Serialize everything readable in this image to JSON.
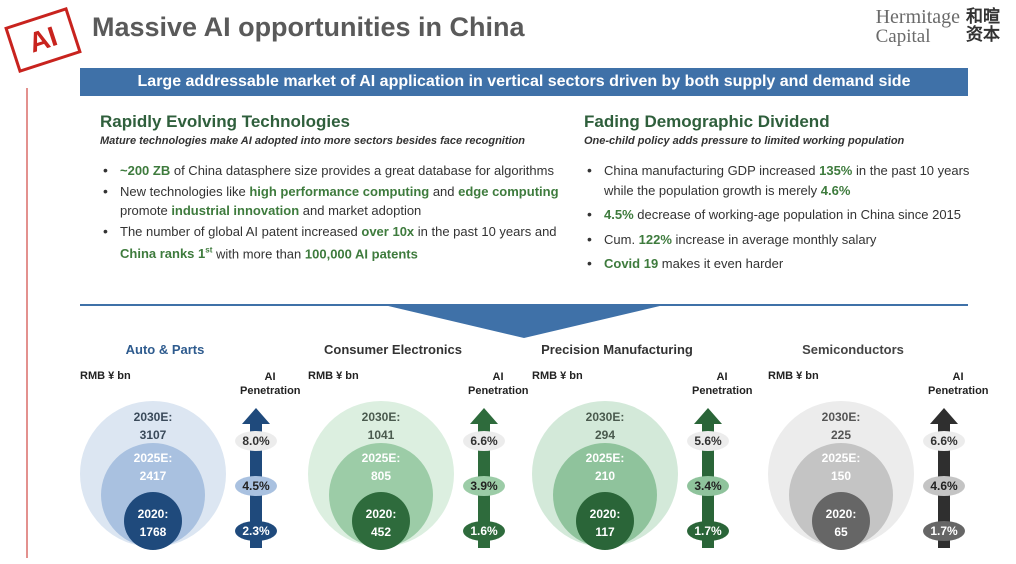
{
  "header": {
    "logo_text": "AI",
    "title": "Massive AI opportunities in China",
    "brand_en_1": "Hermitage",
    "brand_en_2": "Capital",
    "brand_cn_1": "和暄",
    "brand_cn_2": "资本"
  },
  "banner": "Large addressable market of AI application in vertical sectors driven by both supply and demand side",
  "left": {
    "heading": "Rapidly Evolving Technologies",
    "subheading": "Mature technologies make AI adopted into more sectors besides face recognition",
    "b1_hl": "~200 ZB",
    "b1_rest": " of China datasphere size provides a great database for algorithms",
    "b2_a": "New technologies like ",
    "b2_hl1": "high performance computing",
    "b2_b": " and ",
    "b2_hl2": "edge computing",
    "b2_c": " promote ",
    "b2_hl3": "industrial innovation",
    "b2_d": " and market adoption",
    "b3_a": "The number of global AI patent increased ",
    "b3_hl1": "over 10x",
    "b3_b": " in the past 10 years and ",
    "b3_hl2": "China ranks 1",
    "b3_sup": "st",
    "b3_c": " with more than ",
    "b3_hl3": "100,000 AI patents"
  },
  "right": {
    "heading": "Fading Demographic Dividend",
    "subheading": "One-child policy adds pressure to  limited working population",
    "b1_a": "China manufacturing GDP increased ",
    "b1_hl1": "135%",
    "b1_b": " in the past 10 years while the population growth is merely ",
    "b1_hl2": "4.6%",
    "b2_hl": "4.5%",
    "b2_rest": " decrease of working-age population in China since 2015",
    "b3_a": "Cum. ",
    "b3_hl": "122%",
    "b3_b": " increase in average monthly salary",
    "b4_hl": "Covid 19",
    "b4_rest": " makes it even harder"
  },
  "sectors_common": {
    "unit": "RMB ¥ bn",
    "pen_1": "AI",
    "pen_2": "Penetration"
  },
  "sectors": [
    {
      "name": "Auto & Parts",
      "l2030": "2030E:",
      "v2030": "3107",
      "l2025": "2025E:",
      "v2025": "2417",
      "l2020": "2020:",
      "v2020": "1768",
      "p2030": "8.0%",
      "p2025": "4.5%",
      "p2020": "2.3%",
      "colors": {
        "title": "#2e5b8e",
        "outer": "#dce6f2",
        "mid": "#a9c1e0",
        "inner": "#1f4a7c",
        "arrow": "#1f4a7c",
        "text_light": "#3a4a5a"
      }
    },
    {
      "name": "Consumer Electronics",
      "l2030": "2030E:",
      "v2030": "1041",
      "l2025": "2025E:",
      "v2025": "805",
      "l2020": "2020:",
      "v2020": "452",
      "p2030": "6.6%",
      "p2025": "3.9%",
      "p2020": "1.6%",
      "colors": {
        "title": "#333333",
        "outer": "#dcefe0",
        "mid": "#9ccca7",
        "inner": "#2e6b3c",
        "arrow": "#2e6b3c",
        "text_light": "#4a5a4e"
      }
    },
    {
      "name": "Precision Manufacturing",
      "l2030": "2030E:",
      "v2030": "294",
      "l2025": "2025E:",
      "v2025": "210",
      "l2020": "2020:",
      "v2020": "117",
      "p2030": "5.6%",
      "p2025": "3.4%",
      "p2020": "1.7%",
      "colors": {
        "title": "#333333",
        "outer": "#d3e9d9",
        "mid": "#8fc39c",
        "inner": "#2a6538",
        "arrow": "#2a6538",
        "text_light": "#4a5a4e"
      }
    },
    {
      "name": "Semiconductors",
      "l2030": "2030E:",
      "v2030": "225",
      "l2025": "2025E:",
      "v2025": "150",
      "l2020": "2020:",
      "v2020": "65",
      "p2030": "6.6%",
      "p2025": "4.6%",
      "p2020": "1.7%",
      "colors": {
        "title": "#444444",
        "outer": "#ececec",
        "mid": "#c4c4c4",
        "inner": "#666666",
        "arrow": "#2f2f2f",
        "text_light": "#555555"
      }
    }
  ]
}
